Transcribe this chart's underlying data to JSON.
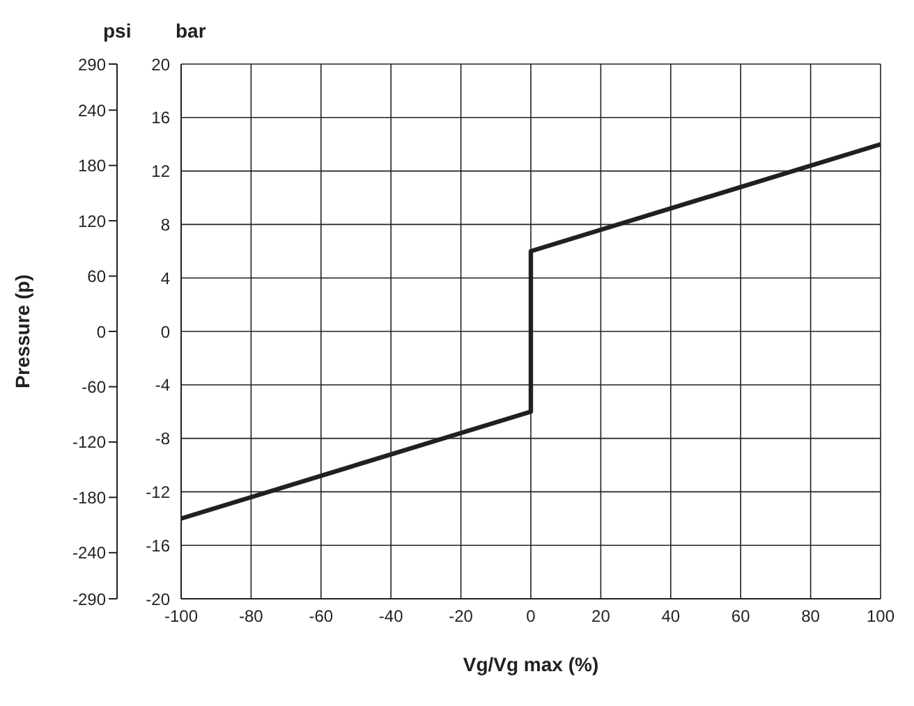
{
  "chart_data": {
    "type": "line",
    "xlabel": "Vg/Vg max (%)",
    "y2label": "Pressure (p)",
    "annotations": [
      "psi",
      "bar"
    ],
    "x": [
      -100,
      0,
      0,
      100
    ],
    "series": [
      {
        "color": "#231f20",
        "values": [
          -14,
          -6,
          6,
          14
        ]
      }
    ],
    "xlim": [
      -100,
      100
    ],
    "xticks": [
      -100,
      -80,
      -60,
      -40,
      -20,
      0,
      20,
      40,
      60,
      80,
      100
    ],
    "ylim": [
      -20,
      20
    ],
    "yticks": [
      -20,
      -16,
      -12,
      -8,
      -4,
      0,
      4,
      8,
      12,
      16,
      20
    ],
    "y2lim": [
      -290,
      290
    ],
    "y2ticks": [
      -290,
      -240,
      -180,
      -120,
      -60,
      0,
      60,
      120,
      180,
      240,
      290
    ],
    "grid": true,
    "line_style": "solid",
    "marker": "none"
  }
}
